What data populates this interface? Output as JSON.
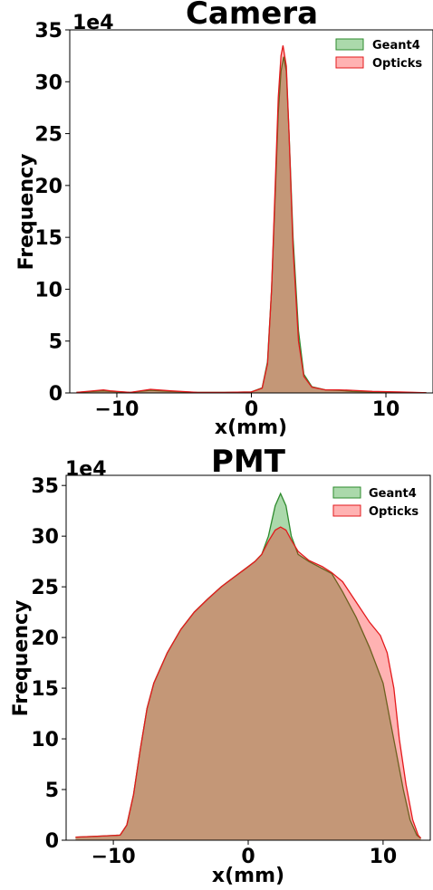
{
  "chart_data": [
    {
      "type": "area",
      "title": "Camera",
      "xlabel": "x(mm)",
      "ylabel": "Frequency",
      "y_offset_label": "1e4",
      "xlim": [
        -13.5,
        13.5
      ],
      "ylim": [
        0,
        35
      ],
      "xticks": [
        -10,
        0,
        10
      ],
      "xtick_labels": [
        "−10",
        "0",
        "10"
      ],
      "yticks": [
        0,
        5,
        10,
        15,
        20,
        25,
        30,
        35
      ],
      "ytick_labels": [
        "0",
        "5",
        "10",
        "15",
        "20",
        "25",
        "30",
        "35"
      ],
      "grid": false,
      "legend_position": "top-right",
      "series": [
        {
          "name": "Geant4",
          "fill": "#2ca02c",
          "stroke": "#2e8b2e",
          "points": [
            [
              -13,
              0.05
            ],
            [
              -11,
              0.2
            ],
            [
              -10.5,
              0.15
            ],
            [
              -9,
              0.05
            ],
            [
              -7.5,
              0.25
            ],
            [
              -6,
              0.15
            ],
            [
              -4,
              0.05
            ],
            [
              -2,
              0.05
            ],
            [
              0,
              0.1
            ],
            [
              0.8,
              0.5
            ],
            [
              1.2,
              3
            ],
            [
              1.5,
              10
            ],
            [
              1.8,
              20
            ],
            [
              2.0,
              27
            ],
            [
              2.2,
              31
            ],
            [
              2.4,
              32.4
            ],
            [
              2.6,
              31
            ],
            [
              2.8,
              25
            ],
            [
              3.1,
              15
            ],
            [
              3.5,
              6
            ],
            [
              3.9,
              1.8
            ],
            [
              4.5,
              0.6
            ],
            [
              5.5,
              0.3
            ],
            [
              6.5,
              0.25
            ],
            [
              7.5,
              0.15
            ],
            [
              9,
              0.1
            ],
            [
              11,
              0.05
            ],
            [
              13,
              0.02
            ]
          ]
        },
        {
          "name": "Opticks",
          "fill": "#ff0000",
          "stroke": "#e31a1c",
          "points": [
            [
              -13,
              0.05
            ],
            [
              -11,
              0.3
            ],
            [
              -10.5,
              0.2
            ],
            [
              -9,
              0.05
            ],
            [
              -7.5,
              0.35
            ],
            [
              -6,
              0.2
            ],
            [
              -4,
              0.05
            ],
            [
              -2,
              0.05
            ],
            [
              0,
              0.1
            ],
            [
              0.8,
              0.45
            ],
            [
              1.2,
              2.8
            ],
            [
              1.5,
              10
            ],
            [
              1.8,
              21
            ],
            [
              2.0,
              28.5
            ],
            [
              2.2,
              32.5
            ],
            [
              2.35,
              33.5
            ],
            [
              2.6,
              31.5
            ],
            [
              2.8,
              25
            ],
            [
              3.1,
              14
            ],
            [
              3.5,
              5
            ],
            [
              3.9,
              1.6
            ],
            [
              4.5,
              0.55
            ],
            [
              5.5,
              0.3
            ],
            [
              6.5,
              0.3
            ],
            [
              7.5,
              0.25
            ],
            [
              9,
              0.15
            ],
            [
              11,
              0.1
            ],
            [
              13,
              0.02
            ]
          ]
        }
      ]
    },
    {
      "type": "area",
      "title": "PMT",
      "xlabel": "x(mm)",
      "ylabel": "Frequency",
      "y_offset_label": "1e4",
      "xlim": [
        -13.5,
        13.5
      ],
      "ylim": [
        0,
        36
      ],
      "xticks": [
        -10,
        0,
        10
      ],
      "xtick_labels": [
        "−10",
        "0",
        "10"
      ],
      "yticks": [
        0,
        5,
        10,
        15,
        20,
        25,
        30,
        35
      ],
      "ytick_labels": [
        "0",
        "5",
        "10",
        "15",
        "20",
        "25",
        "30",
        "35"
      ],
      "grid": false,
      "legend_position": "top-right",
      "series": [
        {
          "name": "Geant4",
          "fill": "#2ca02c",
          "stroke": "#2e8b2e",
          "points": [
            [
              -12.8,
              0.3
            ],
            [
              -11,
              0.4
            ],
            [
              -9.5,
              0.5
            ],
            [
              -9,
              1.5
            ],
            [
              -8.5,
              4.5
            ],
            [
              -8,
              9
            ],
            [
              -7.5,
              13
            ],
            [
              -7,
              15.5
            ],
            [
              -6,
              18.5
            ],
            [
              -5,
              20.8
            ],
            [
              -4,
              22.5
            ],
            [
              -3,
              23.8
            ],
            [
              -2,
              25
            ],
            [
              -1,
              26
            ],
            [
              0,
              27
            ],
            [
              0.5,
              27.5
            ],
            [
              1,
              28.2
            ],
            [
              1.5,
              30
            ],
            [
              2,
              33
            ],
            [
              2.4,
              34.2
            ],
            [
              2.8,
              33
            ],
            [
              3.2,
              30
            ],
            [
              3.7,
              28.2
            ],
            [
              4.5,
              27.5
            ],
            [
              5.5,
              26.8
            ],
            [
              6.2,
              26.3
            ],
            [
              7,
              24.5
            ],
            [
              8,
              22
            ],
            [
              9,
              19
            ],
            [
              10,
              15.5
            ],
            [
              10.5,
              12
            ],
            [
              11,
              8.5
            ],
            [
              11.5,
              5
            ],
            [
              12,
              2
            ],
            [
              12.5,
              0.5
            ],
            [
              12.8,
              0.2
            ]
          ]
        },
        {
          "name": "Opticks",
          "fill": "#ff0000",
          "stroke": "#e31a1c",
          "points": [
            [
              -12.8,
              0.3
            ],
            [
              -11,
              0.4
            ],
            [
              -9.5,
              0.5
            ],
            [
              -9,
              1.5
            ],
            [
              -8.5,
              4.5
            ],
            [
              -8,
              9
            ],
            [
              -7.5,
              13
            ],
            [
              -7,
              15.5
            ],
            [
              -6,
              18.5
            ],
            [
              -5,
              20.8
            ],
            [
              -4,
              22.5
            ],
            [
              -3,
              23.8
            ],
            [
              -2,
              25
            ],
            [
              -1,
              26
            ],
            [
              0,
              27
            ],
            [
              0.5,
              27.5
            ],
            [
              1,
              28.2
            ],
            [
              1.5,
              29.5
            ],
            [
              2,
              30.6
            ],
            [
              2.4,
              30.9
            ],
            [
              2.8,
              30.6
            ],
            [
              3.2,
              29.6
            ],
            [
              3.7,
              28.5
            ],
            [
              4.5,
              27.6
            ],
            [
              5.5,
              27
            ],
            [
              6.2,
              26.4
            ],
            [
              7,
              25.5
            ],
            [
              8,
              23.5
            ],
            [
              9,
              21.5
            ],
            [
              9.8,
              20.2
            ],
            [
              10.3,
              18.5
            ],
            [
              10.8,
              15
            ],
            [
              11.2,
              10
            ],
            [
              11.7,
              5.5
            ],
            [
              12.2,
              2
            ],
            [
              12.6,
              0.5
            ],
            [
              12.8,
              0.2
            ]
          ]
        }
      ]
    }
  ]
}
